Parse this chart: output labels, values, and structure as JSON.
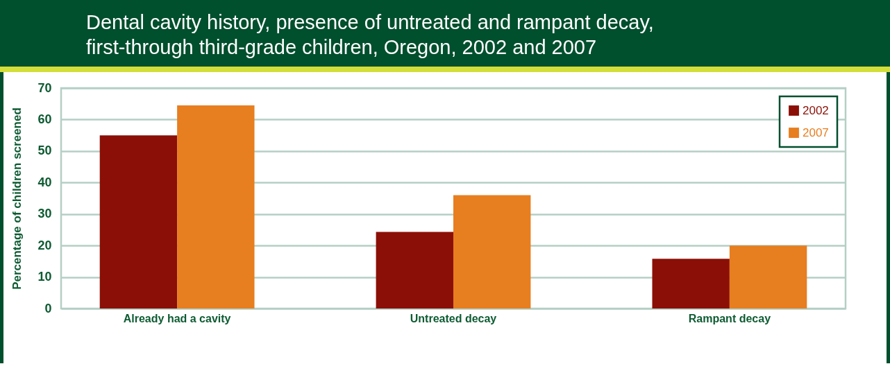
{
  "chart_data": {
    "type": "bar",
    "title": "Dental cavity history, presence of untreated and rampant decay,\nfirst-through third-grade children, Oregon, 2002 and 2007",
    "ylabel": "Percentage of children screened",
    "categories": [
      "Already had a cavity",
      "Untreated decay",
      "Rampant decay"
    ],
    "series": [
      {
        "name": "2002",
        "color": "#8b0f06",
        "values": [
          55,
          24.3,
          15.8
        ]
      },
      {
        "name": "2007",
        "color": "#e77e1f",
        "values": [
          64.5,
          36,
          20
        ]
      }
    ],
    "ylim": [
      0,
      70
    ],
    "yticks": [
      0,
      10,
      20,
      30,
      40,
      50,
      60,
      70
    ],
    "grid": "y",
    "legend": "top right"
  }
}
